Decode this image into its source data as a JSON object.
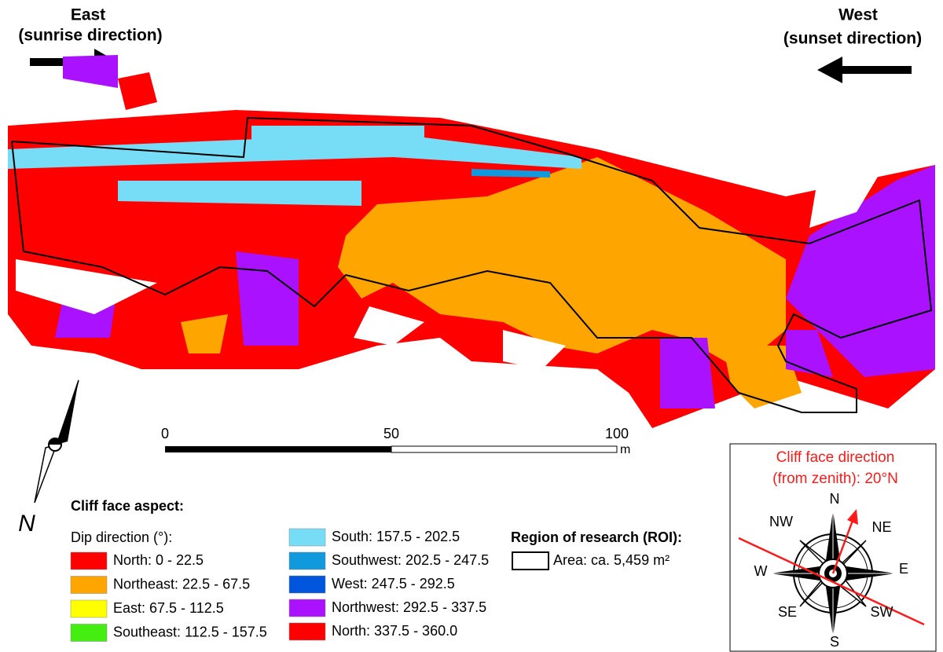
{
  "header": {
    "east": {
      "label": "East",
      "note": "(sunrise direction)"
    },
    "west": {
      "label": "West",
      "note": "(sunset direction)"
    }
  },
  "scale_bar": {
    "ticks": [
      "0",
      "50",
      "100"
    ],
    "unit": "m"
  },
  "north_arrow": {
    "label": "N"
  },
  "legend": {
    "title": "Cliff face aspect:",
    "subtitle": "Dip direction (°):",
    "classes": [
      {
        "label": "North: 0 - 22.5",
        "color": "#ff0000"
      },
      {
        "label": "Northeast: 22.5 - 67.5",
        "color": "#ffa500"
      },
      {
        "label": "East: 67.5 - 112.5",
        "color": "#ffff00"
      },
      {
        "label": "Southeast: 112.5 - 157.5",
        "color": "#44ee11"
      },
      {
        "label": "South: 157.5 - 202.5",
        "color": "#77ddf7"
      },
      {
        "label": "Southwest: 202.5 - 247.5",
        "color": "#1199dd"
      },
      {
        "label": "West: 247.5 - 292.5",
        "color": "#0055dd"
      },
      {
        "label": "Northwest: 292.5 - 337.5",
        "color": "#aa11ff"
      },
      {
        "label": "North: 337.5 - 360.0",
        "color": "#ff0000"
      }
    ],
    "roi": {
      "title": "Region of research (ROI):",
      "label": "Area: ca. 5,459 m²"
    }
  },
  "compass": {
    "title": "Cliff face direction",
    "subtitle": "(from zenith): 20°N",
    "points": [
      "N",
      "NE",
      "E",
      "SW",
      "S",
      "SE",
      "W",
      "NW"
    ]
  }
}
